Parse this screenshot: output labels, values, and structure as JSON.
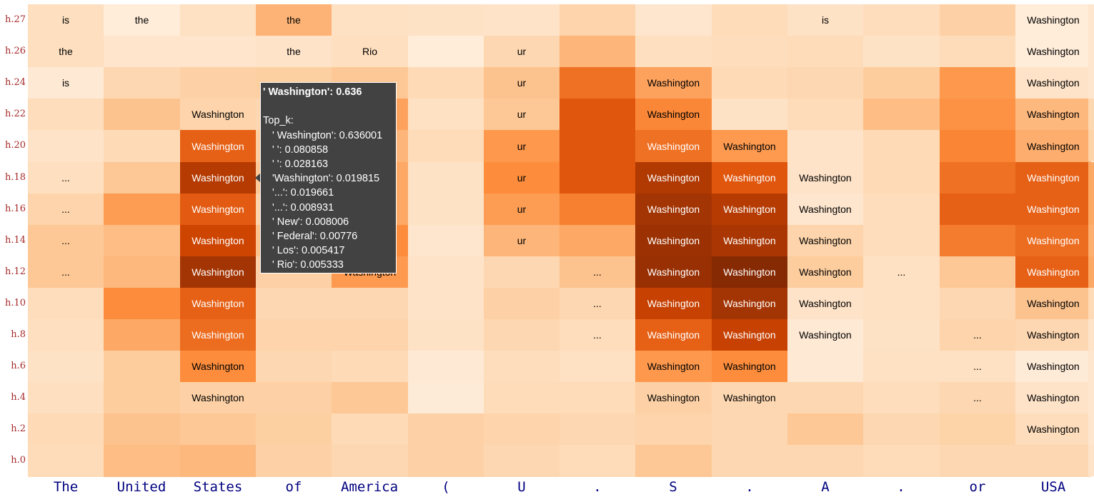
{
  "chart_data": {
    "type": "heatmap",
    "x_tokens": [
      "The",
      "United",
      "States",
      "of",
      "America",
      "(",
      "U",
      ".",
      "S",
      ".",
      "A",
      ".",
      "or",
      "USA"
    ],
    "y_layers": [
      "h.27",
      "h.26",
      "h.24",
      "h.22",
      "h.20",
      "h.18",
      "h.16",
      "h.14",
      "h.12",
      "h.10",
      "h.8",
      "h.6",
      "h.4",
      "h.2",
      "h.0"
    ],
    "cell_text": [
      [
        "is",
        "the",
        "",
        "the",
        "",
        "",
        "",
        "",
        "",
        "",
        "is",
        "",
        "",
        "Washington"
      ],
      [
        "the",
        "",
        "",
        "the",
        "Rio",
        "",
        "ur",
        "",
        "",
        "",
        "",
        "",
        "",
        "Washington"
      ],
      [
        "is",
        "",
        "",
        "",
        "",
        "",
        "ur",
        "",
        "Washington",
        "",
        "",
        "",
        "",
        "Washington"
      ],
      [
        "",
        "",
        "Washington",
        "",
        "",
        "",
        "ur",
        "",
        "Washington",
        "",
        "",
        "",
        "",
        "Washington"
      ],
      [
        "",
        "",
        "Washington",
        "",
        "",
        "",
        "ur",
        "",
        "Washington",
        "Washington",
        "",
        "",
        "",
        "Washington"
      ],
      [
        "...",
        "",
        "Washington",
        "",
        "",
        "",
        "ur",
        "",
        "Washington",
        "Washington",
        "Washington",
        "",
        "",
        "Washington"
      ],
      [
        "...",
        "",
        "Washington",
        "",
        "",
        "",
        "ur",
        "",
        "Washington",
        "Washington",
        "Washington",
        "",
        "",
        "Washington"
      ],
      [
        "...",
        "",
        "Washington",
        "",
        "",
        "",
        "ur",
        "",
        "Washington",
        "Washington",
        "Washington",
        "",
        "",
        "Washington"
      ],
      [
        "...",
        "",
        "Washington",
        "",
        "Washington",
        "",
        "",
        "...",
        "Washington",
        "Washington",
        "Washington",
        "...",
        "",
        "Washington"
      ],
      [
        "",
        "",
        "Washington",
        "",
        "",
        "",
        "",
        "...",
        "Washington",
        "Washington",
        "Washington",
        "",
        "",
        "Washington"
      ],
      [
        "",
        "",
        "Washington",
        "",
        "",
        "",
        "",
        "...",
        "Washington",
        "Washington",
        "Washington",
        "",
        "...",
        "Washington"
      ],
      [
        "",
        "",
        "Washington",
        "",
        "",
        "",
        "",
        "",
        "Washington",
        "Washington",
        "",
        "",
        "...",
        "Washington"
      ],
      [
        "",
        "",
        "Washington",
        "",
        "",
        "",
        "",
        "",
        "Washington",
        "Washington",
        "",
        "",
        "...",
        "Washington"
      ],
      [
        "",
        "",
        "",
        "",
        "",
        "",
        "",
        "",
        "",
        "",
        "",
        "",
        "",
        "Washington"
      ],
      [
        "",
        "",
        "",
        "",
        "",
        "",
        "",
        "",
        "",
        "",
        "",
        "",
        "",
        ""
      ]
    ],
    "intensity": [
      [
        0.15,
        0.06,
        0.14,
        0.36,
        0.14,
        0.13,
        0.12,
        0.22,
        0.1,
        0.17,
        0.13,
        0.16,
        0.24,
        0.06
      ],
      [
        0.15,
        0.11,
        0.11,
        0.12,
        0.15,
        0.06,
        0.2,
        0.35,
        0.15,
        0.16,
        0.17,
        0.13,
        0.17,
        0.06
      ],
      [
        0.08,
        0.2,
        0.24,
        0.25,
        0.28,
        0.18,
        0.3,
        0.6,
        0.42,
        0.18,
        0.2,
        0.26,
        0.46,
        0.12
      ],
      [
        0.16,
        0.3,
        0.22,
        0.2,
        0.42,
        0.14,
        0.28,
        0.7,
        0.52,
        0.13,
        0.17,
        0.32,
        0.48,
        0.34
      ],
      [
        0.12,
        0.18,
        0.66,
        0.25,
        0.35,
        0.17,
        0.46,
        0.7,
        0.6,
        0.45,
        0.12,
        0.18,
        0.53,
        0.38
      ],
      [
        0.15,
        0.28,
        0.85,
        0.28,
        0.4,
        0.13,
        0.5,
        0.7,
        0.86,
        0.7,
        0.12,
        0.18,
        0.6,
        0.66
      ],
      [
        0.22,
        0.44,
        0.68,
        0.22,
        0.4,
        0.13,
        0.44,
        0.55,
        0.9,
        0.85,
        0.1,
        0.16,
        0.66,
        0.66
      ],
      [
        0.28,
        0.32,
        0.78,
        0.3,
        0.5,
        0.1,
        0.35,
        0.4,
        0.92,
        0.88,
        0.22,
        0.16,
        0.56,
        0.62
      ],
      [
        0.28,
        0.34,
        0.9,
        0.24,
        0.45,
        0.12,
        0.2,
        0.3,
        0.93,
        0.98,
        0.26,
        0.14,
        0.28,
        0.66
      ],
      [
        0.16,
        0.5,
        0.66,
        0.2,
        0.2,
        0.12,
        0.24,
        0.2,
        0.8,
        0.9,
        0.12,
        0.14,
        0.2,
        0.3
      ],
      [
        0.15,
        0.4,
        0.62,
        0.22,
        0.22,
        0.13,
        0.2,
        0.16,
        0.66,
        0.8,
        0.08,
        0.13,
        0.22,
        0.2
      ],
      [
        0.13,
        0.26,
        0.5,
        0.2,
        0.18,
        0.08,
        0.16,
        0.14,
        0.46,
        0.5,
        0.08,
        0.14,
        0.14,
        0.07
      ],
      [
        0.15,
        0.26,
        0.24,
        0.24,
        0.28,
        0.07,
        0.17,
        0.17,
        0.24,
        0.2,
        0.2,
        0.16,
        0.2,
        0.12
      ],
      [
        0.18,
        0.3,
        0.28,
        0.25,
        0.18,
        0.24,
        0.22,
        0.2,
        0.22,
        0.2,
        0.28,
        0.2,
        0.23,
        0.16
      ],
      [
        0.17,
        0.32,
        0.34,
        0.24,
        0.2,
        0.24,
        0.2,
        0.17,
        0.28,
        0.2,
        0.2,
        0.17,
        0.2,
        0.2
      ]
    ],
    "colormap": {
      "low": "#fff5eb",
      "high": "#7f2704"
    }
  },
  "tooltip": {
    "title": "' Washington': 0.636",
    "section": "Top_k:",
    "items": [
      "' Washington': 0.636001",
      "' ': 0.080858",
      "' ': 0.028163",
      "'Washington': 0.019815",
      "'...': 0.019661",
      "'...': 0.008931",
      "' New': 0.008006",
      "' Federal': 0.00776",
      "' Los': 0.005417",
      "' Rio': 0.005333"
    ]
  }
}
